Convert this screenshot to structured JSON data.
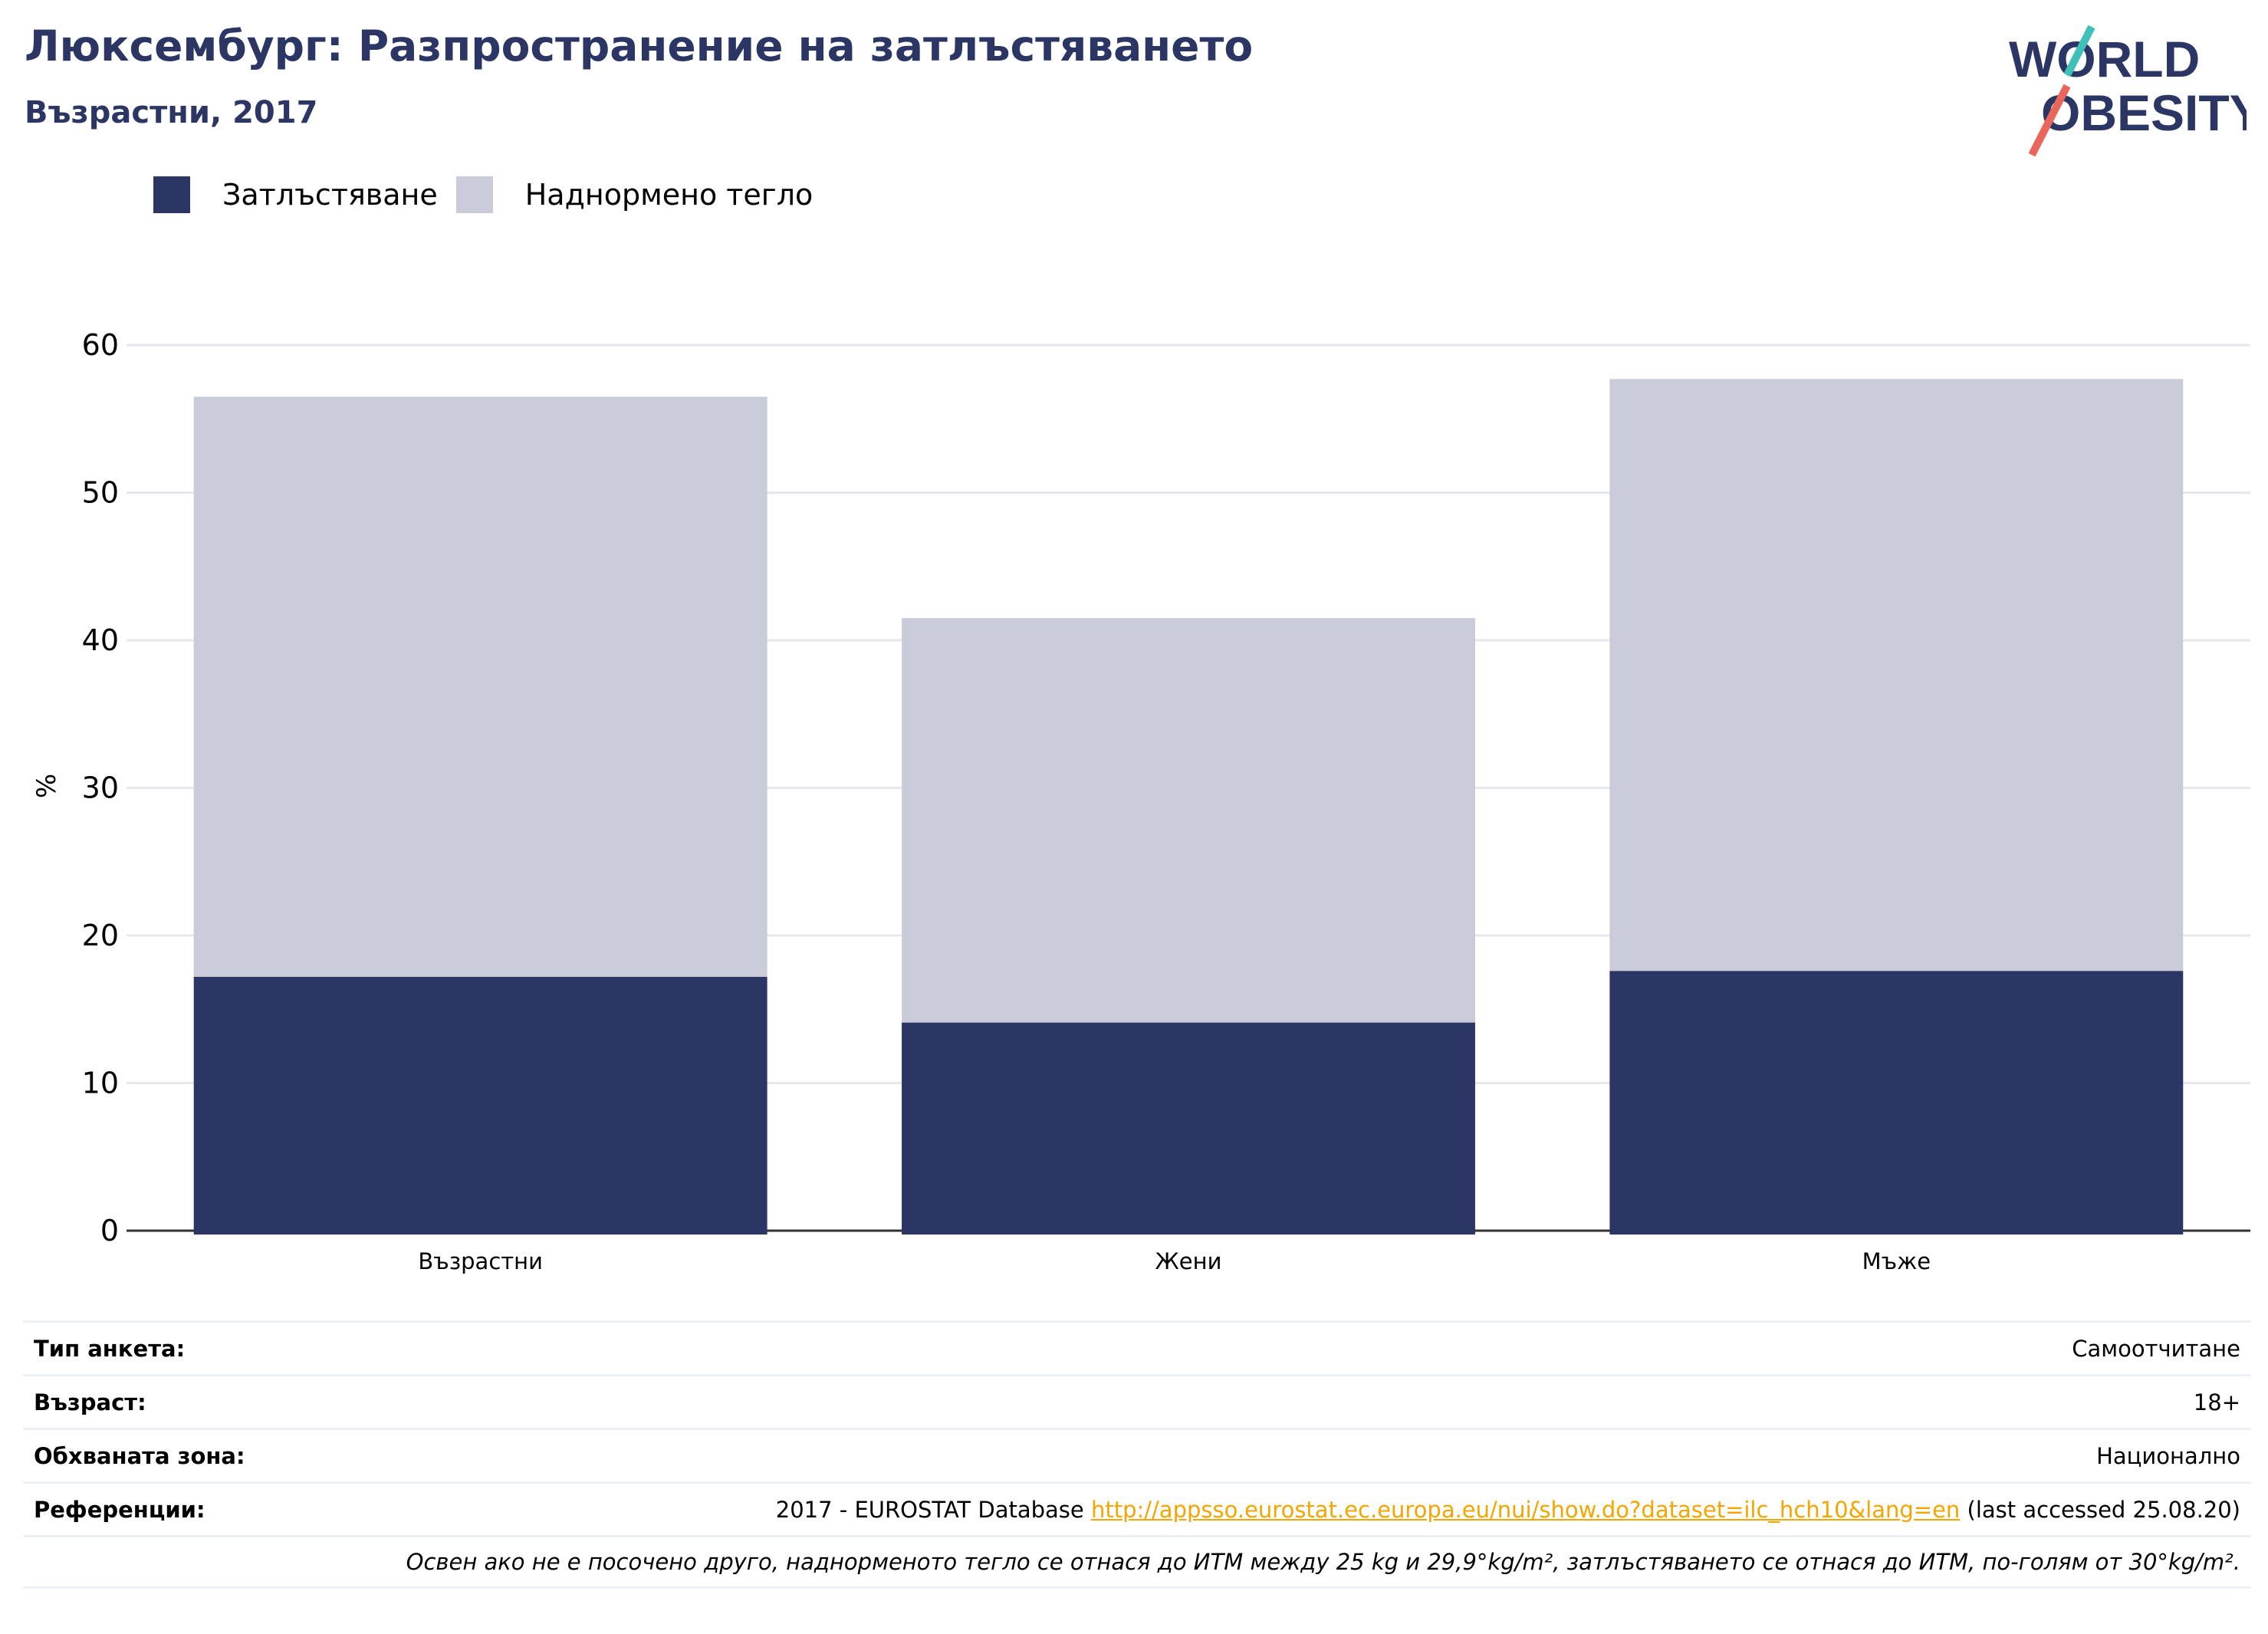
{
  "header": {
    "title": "Люксембург: Разпространение на затлъстяването",
    "subtitle": "Възрастни, 2017"
  },
  "logo": {
    "line1": "WORLD",
    "line2": "OBESITY"
  },
  "colors": {
    "obesity": "#2b3664",
    "overweight": "#cacbd8",
    "title": "#2b3664",
    "link": "#f5a500",
    "logo_slash_teal": "#3ebfb7",
    "logo_slash_red": "#e8675a"
  },
  "chart_data": {
    "type": "bar",
    "stacked": true,
    "categories": [
      "Възрастни",
      "Жени",
      "Мъже"
    ],
    "series": [
      {
        "name": "Затлъстяване",
        "values": [
          17.2,
          14.1,
          17.6
        ]
      },
      {
        "name": "Наднормено тегло",
        "values": [
          39.3,
          27.4,
          40.1
        ]
      }
    ],
    "ylabel": "%",
    "yticks": [
      0,
      10,
      20,
      30,
      40,
      50,
      60
    ],
    "ylim": [
      0,
      60
    ],
    "grid": true,
    "legend_position": "top-left"
  },
  "meta": {
    "survey_label": "Тип анкета:",
    "survey_value": "Самоотчитане",
    "age_label": "Възраст:",
    "age_value": "18+",
    "area_label": "Обхваната зона:",
    "area_value": "Национално",
    "refs_label": "Референции:",
    "refs_prefix": "2017 - EUROSTAT Database ",
    "refs_link": "http://appsso.eurostat.ec.europa.eu/nui/show.do?dataset=ilc_hch10&lang=en",
    "refs_suffix": " (last accessed 25.08.20)",
    "note": "Освен ако не е посочено друго, наднорменото тегло се отнася до ИТМ между 25 kg и 29,9°kg/m², затлъстяването се отнася до ИТМ, по-голям от 30°kg/m²."
  }
}
